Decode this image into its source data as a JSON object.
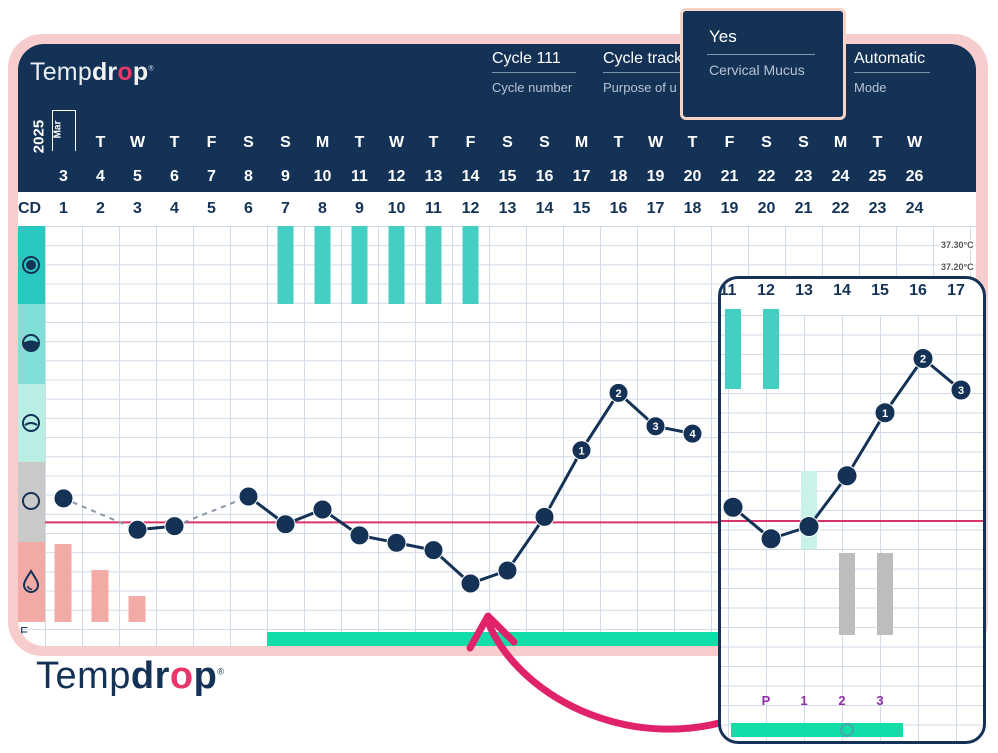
{
  "brand": {
    "logo_light": "Temp",
    "logo_bold_a": "dr",
    "logo_o": "o",
    "logo_bold_b": "p",
    "reg": "®"
  },
  "header": {
    "cycle": {
      "value": "Cycle 111",
      "label": "Cycle number"
    },
    "purpose": {
      "value": "Cycle track",
      "label": "Purpose of u"
    },
    "mode": {
      "value": "Automatic",
      "label": "Mode"
    },
    "year": "2025",
    "month": "Mar"
  },
  "popup": {
    "value": "Yes",
    "label": "Cervical Mucus"
  },
  "days": [
    {
      "dow": "",
      "dom": "3",
      "cd": "1"
    },
    {
      "dow": "T",
      "dom": "4",
      "cd": "2"
    },
    {
      "dow": "W",
      "dom": "5",
      "cd": "3"
    },
    {
      "dow": "T",
      "dom": "6",
      "cd": "4"
    },
    {
      "dow": "F",
      "dom": "7",
      "cd": "5"
    },
    {
      "dow": "S",
      "dom": "8",
      "cd": "6"
    },
    {
      "dow": "S",
      "dom": "9",
      "cd": "7"
    },
    {
      "dow": "M",
      "dom": "10",
      "cd": "8"
    },
    {
      "dow": "T",
      "dom": "11",
      "cd": "9"
    },
    {
      "dow": "W",
      "dom": "12",
      "cd": "10"
    },
    {
      "dow": "T",
      "dom": "13",
      "cd": "11"
    },
    {
      "dow": "F",
      "dom": "14",
      "cd": "12"
    },
    {
      "dow": "S",
      "dom": "15",
      "cd": "13"
    },
    {
      "dow": "S",
      "dom": "16",
      "cd": "14"
    },
    {
      "dow": "M",
      "dom": "17",
      "cd": "15"
    },
    {
      "dow": "T",
      "dom": "18",
      "cd": "16"
    },
    {
      "dow": "W",
      "dom": "19",
      "cd": "17"
    },
    {
      "dow": "T",
      "dom": "20",
      "cd": "18"
    },
    {
      "dow": "F",
      "dom": "21",
      "cd": "19"
    },
    {
      "dow": "S",
      "dom": "22",
      "cd": "20"
    },
    {
      "dow": "S",
      "dom": "23",
      "cd": "21"
    },
    {
      "dow": "M",
      "dom": "24",
      "cd": "22"
    },
    {
      "dow": "T",
      "dom": "25",
      "cd": "23"
    },
    {
      "dow": "W",
      "dom": "26",
      "cd": "24"
    }
  ],
  "cd_label": "CD",
  "bottom_row_label": "F",
  "temp_labels": [
    "37.30°C",
    "37.20°C"
  ],
  "colors": {
    "navy": "#143256",
    "teal": "#45cfc4",
    "mint": "#9ee6dd",
    "pale_mint": "#c8f2ea",
    "grey": "#c9c9c9",
    "pink": "#f3aaa7",
    "coverline": "#d8336b",
    "fertile_bar": "#12dca8",
    "label_purple": "#8e2fa6"
  },
  "band_icons": [
    "dark-circle-icon",
    "half-drop-icon",
    "drop-circle-icon",
    "empty-circle-icon",
    "water-drop-icon"
  ],
  "chart_data": {
    "type": "line",
    "x_label_row": "CD",
    "points": [
      {
        "cd": 1,
        "level": 6.9,
        "label": ""
      },
      {
        "cd": 3,
        "level": 5.2,
        "label": ""
      },
      {
        "cd": 4,
        "level": 5.4,
        "label": ""
      },
      {
        "cd": 6,
        "level": 7.0,
        "label": ""
      },
      {
        "cd": 7,
        "level": 5.5,
        "label": ""
      },
      {
        "cd": 8,
        "level": 6.3,
        "label": ""
      },
      {
        "cd": 9,
        "level": 4.9,
        "label": ""
      },
      {
        "cd": 10,
        "level": 4.5,
        "label": ""
      },
      {
        "cd": 11,
        "level": 4.1,
        "label": ""
      },
      {
        "cd": 12,
        "level": 2.3,
        "label": ""
      },
      {
        "cd": 13,
        "level": 3.0,
        "label": ""
      },
      {
        "cd": 14,
        "level": 5.9,
        "label": ""
      },
      {
        "cd": 15,
        "level": 9.5,
        "label": "1"
      },
      {
        "cd": 16,
        "level": 12.6,
        "label": "2"
      },
      {
        "cd": 17,
        "level": 10.8,
        "label": "3"
      },
      {
        "cd": 18,
        "level": 10.4,
        "label": "4"
      }
    ],
    "dashed_segments": [
      [
        1,
        3
      ],
      [
        4,
        6
      ]
    ],
    "coverline_level": 5.6,
    "mucus_bars_cd": [
      7,
      8,
      9,
      10,
      11,
      12
    ],
    "period_bars": [
      {
        "cd": 1,
        "value": 3
      },
      {
        "cd": 2,
        "value": 2
      },
      {
        "cd": 3,
        "value": 1
      }
    ],
    "fertile_window_cd": [
      7,
      19
    ]
  },
  "zoom": {
    "headers": [
      "11",
      "12",
      "13",
      "14",
      "15",
      "16",
      "17"
    ],
    "labels": [
      "P",
      "1",
      "2",
      "3"
    ],
    "points": [
      {
        "cd": 11,
        "level": 4.1,
        "label": ""
      },
      {
        "cd": 12,
        "level": 2.3,
        "label": ""
      },
      {
        "cd": 13,
        "level": 3.0,
        "label": ""
      },
      {
        "cd": 14,
        "level": 5.9,
        "label": ""
      },
      {
        "cd": 15,
        "level": 9.5,
        "label": "1"
      },
      {
        "cd": 16,
        "level": 12.6,
        "label": "2"
      },
      {
        "cd": 17,
        "level": 10.8,
        "label": "3"
      }
    ],
    "mucus_bars_cd": [
      11,
      12
    ],
    "pale_bar_cd": [
      13
    ],
    "grey_bars_cd": [
      14,
      15
    ],
    "coverline_level": 5.6
  }
}
